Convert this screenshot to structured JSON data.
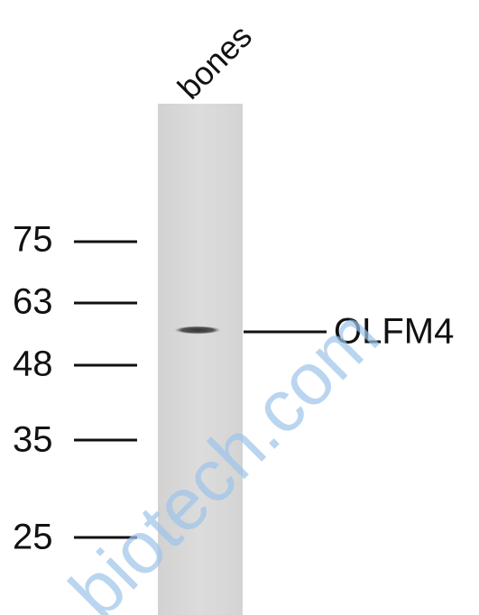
{
  "lane": {
    "label": "bones"
  },
  "markers": [
    "75",
    "63",
    "48",
    "35",
    "25"
  ],
  "band": {
    "label": "OLFM4"
  },
  "watermark": "biotech.com"
}
